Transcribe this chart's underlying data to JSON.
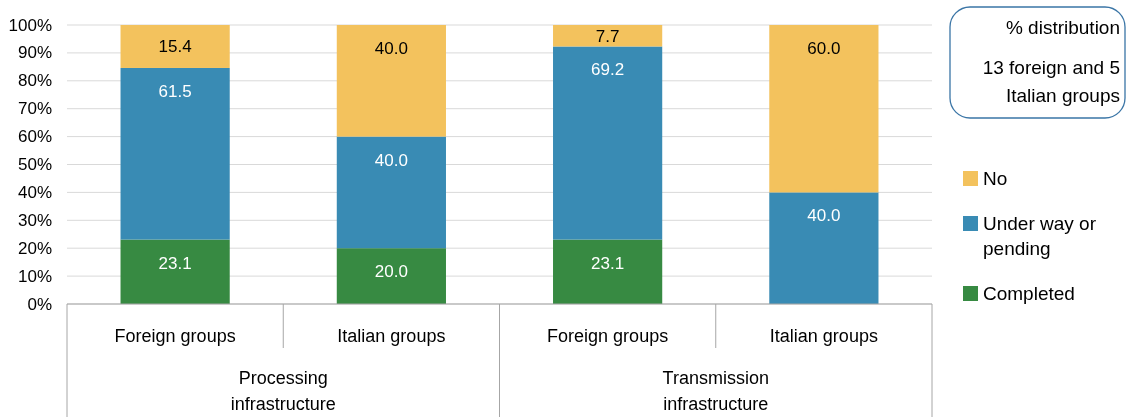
{
  "chart_data": {
    "type": "bar",
    "title": "% distribution",
    "subtitle": "13 foreign and 5 Italian groups",
    "categories": [
      "Foreign groups",
      "Italian groups",
      "Foreign groups",
      "Italian groups"
    ],
    "annotations": [
      "Processing infrastructure",
      "Transmission infrastructure"
    ],
    "series": [
      {
        "name": "Completed",
        "color": "#378a42",
        "values": [
          23.1,
          20.0,
          23.1,
          null
        ],
        "value_labels": [
          "23.1",
          "20.0",
          "23.1",
          null
        ]
      },
      {
        "name": "Under way or pending",
        "color": "#398bb4",
        "values": [
          61.5,
          40.0,
          69.2,
          40.0
        ],
        "value_labels": [
          "61.5",
          "40.0",
          "69.2",
          "40.0"
        ]
      },
      {
        "name": "No",
        "color": "#f3c25d",
        "values": [
          15.4,
          40.0,
          7.7,
          60.0
        ],
        "value_labels": [
          "15.4",
          "40.0",
          "7.7",
          "60.0"
        ]
      }
    ],
    "stacked": true,
    "ylim": [
      0,
      100
    ],
    "yticks": [
      {
        "value": 0,
        "label": "0%"
      },
      {
        "value": 10,
        "label": "10%"
      },
      {
        "value": 20,
        "label": "20%"
      },
      {
        "value": 30,
        "label": "30%"
      },
      {
        "value": 40,
        "label": "40%"
      },
      {
        "value": 50,
        "label": "50%"
      },
      {
        "value": 60,
        "label": "60%"
      },
      {
        "value": 70,
        "label": "70%"
      },
      {
        "value": 80,
        "label": "80%"
      },
      {
        "value": 90,
        "label": "90%"
      },
      {
        "value": 100,
        "label": "100%"
      }
    ],
    "grid": "y",
    "legend": "right"
  }
}
